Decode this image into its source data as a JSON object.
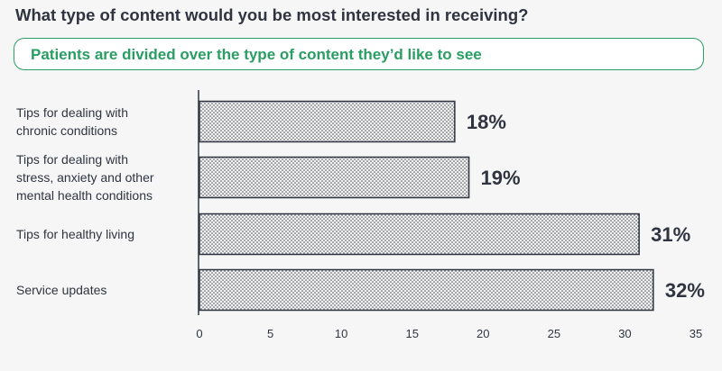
{
  "header": {
    "title": "What type of content would you be most interested in receiving?",
    "subtitle": "Patients are divided over the type of content they’d like to see"
  },
  "chart_data": {
    "type": "bar",
    "orientation": "horizontal",
    "categories": [
      "Tips for dealing with chronic conditions",
      "Tips for dealing with stress, anxiety and other mental health conditions",
      "Tips for healthy living",
      "Service updates"
    ],
    "category_lines": [
      [
        "Tips for dealing with",
        "chronic conditions"
      ],
      [
        "Tips for dealing with",
        "stress, anxiety and other",
        "mental health conditions"
      ],
      [
        "Tips for healthy living"
      ],
      [
        "Service updates"
      ]
    ],
    "values": [
      18,
      19,
      31,
      32
    ],
    "data_labels": [
      "18%",
      "19%",
      "31%",
      "32%"
    ],
    "xlim": [
      0,
      35
    ],
    "xticks": [
      0,
      5,
      10,
      15,
      20,
      25,
      30,
      35
    ],
    "grid": false,
    "legend": "none",
    "colors": {
      "bar_fill": "#f2f2f2",
      "bar_dots": "#3a3e48",
      "bar_stroke": "#2f3440",
      "accent": "#2a9d63",
      "text": "#2f3440"
    }
  }
}
